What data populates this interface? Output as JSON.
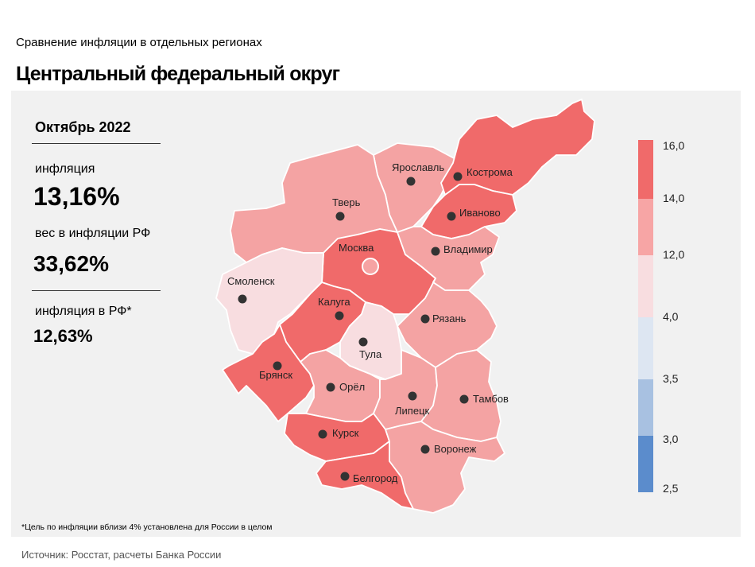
{
  "header": {
    "supertitle": "Сравнение инфляции в отдельных регионах",
    "title": "Центральный федеральный округ"
  },
  "sidebar": {
    "period": "Октябрь 2022",
    "inflation_label": "инфляция",
    "inflation_value": "13,16%",
    "weight_label": "вес в инфляции РФ",
    "weight_value": "33,62%",
    "rf_label": "инфляция в РФ*",
    "rf_value": "12,63%"
  },
  "footnote": "*Цель по инфляции вблизи 4% установлена для России в целом",
  "source": "Источник: Росстат, расчеты Банка России",
  "legend": {
    "ticks": [
      "16,0",
      "14,0",
      "12,0",
      "4,0",
      "3,5",
      "3,0",
      "2,5"
    ],
    "colors": [
      "#f06a6a",
      "#f7a5a5",
      "#f8dde0",
      "#dde6f2",
      "#a8c1e1",
      "#5b8ccc"
    ]
  },
  "regions": [
    {
      "name": "Ярославль",
      "color": "#f4a3a3"
    },
    {
      "name": "Кострома",
      "color": "#f06a6a"
    },
    {
      "name": "Тверь",
      "color": "#f4a3a3"
    },
    {
      "name": "Иваново",
      "color": "#f06a6a"
    },
    {
      "name": "Москва",
      "color": "#f06a6a"
    },
    {
      "name": "Владимир",
      "color": "#f4a3a3"
    },
    {
      "name": "Смоленск",
      "color": "#f8dde0"
    },
    {
      "name": "Калуга",
      "color": "#f06a6a"
    },
    {
      "name": "Рязань",
      "color": "#f4a3a3"
    },
    {
      "name": "Тула",
      "color": "#f8dde0"
    },
    {
      "name": "Брянск",
      "color": "#f06a6a"
    },
    {
      "name": "Орёл",
      "color": "#f4a3a3"
    },
    {
      "name": "Липецк",
      "color": "#f4a3a3"
    },
    {
      "name": "Тамбов",
      "color": "#f4a3a3"
    },
    {
      "name": "Курск",
      "color": "#f06a6a"
    },
    {
      "name": "Воронеж",
      "color": "#f4a3a3"
    },
    {
      "name": "Белгород",
      "color": "#f06a6a"
    }
  ]
}
